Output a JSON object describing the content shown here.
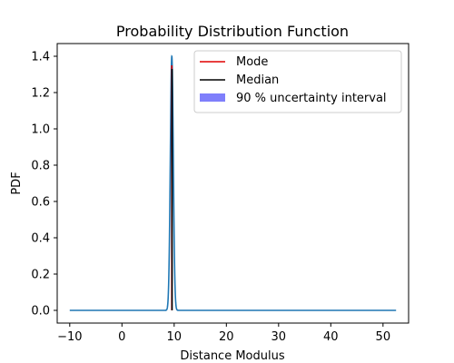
{
  "chart_data": {
    "type": "line",
    "title": "Probability Distribution Function",
    "xlabel": "Distance Modulus",
    "ylabel": "PDF",
    "xlim": [
      -12.4,
      54.9
    ],
    "ylim": [
      -0.07,
      1.47
    ],
    "x_ticks": [
      -10,
      0,
      10,
      20,
      30,
      40,
      50
    ],
    "y_ticks": [
      0.0,
      0.2,
      0.4,
      0.6,
      0.8,
      1.0,
      1.2,
      1.4
    ],
    "x_tick_labels": [
      "−10",
      "0",
      "10",
      "20",
      "30",
      "40",
      "50"
    ],
    "y_tick_labels": [
      "0.0",
      "0.2",
      "0.4",
      "0.6",
      "0.8",
      "1.0",
      "1.2",
      "1.4"
    ],
    "grid": false,
    "legend_position": "top-right",
    "series": [
      {
        "name": "",
        "kind": "pdf-curve",
        "color": "#1f77b4",
        "x_range": [
          -10,
          52.5
        ],
        "peak_x": 9.55,
        "peak_y": 1.4,
        "sigma": 0.285
      }
    ],
    "markers": {
      "mode": {
        "label": "Mode",
        "x": 9.55,
        "y_top": 1.35,
        "color": "#e00000"
      },
      "median": {
        "label": "Median",
        "x": 9.6,
        "y_top": 1.33,
        "color": "#000000"
      },
      "interval": {
        "label": "90 % uncertainty interval",
        "x_low": 9.1,
        "x_high": 10.0,
        "color": "#7f7ffb"
      }
    }
  }
}
